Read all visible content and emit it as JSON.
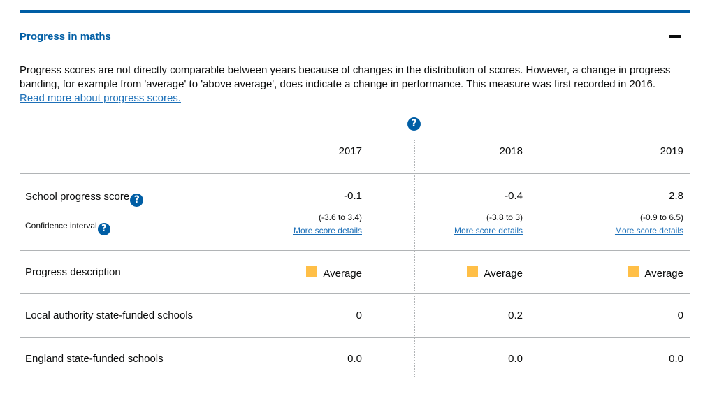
{
  "section": {
    "title": "Progress in maths",
    "collapse_icon": "minus-icon"
  },
  "intro": {
    "text": "Progress scores are not directly comparable between years because of changes in the distribution of scores. However, a change in progress banding, for example from 'average' to 'above average', does indicate a change in performance. This measure was first recorded in 2016.",
    "link_text": "Read more about progress scores."
  },
  "help_icon_glyph": "?",
  "years": [
    "2017",
    "2018",
    "2019"
  ],
  "rows": {
    "school_progress": {
      "label": "School progress score",
      "ci_label": "Confidence interval",
      "values": [
        "-0.1",
        "-0.4",
        "2.8"
      ],
      "confidence_intervals": [
        "(-3.6 to 3.4)",
        "(-3.8 to 3)",
        "(-0.9 to 6.5)"
      ],
      "more_link": "More score details"
    },
    "progress_description": {
      "label": "Progress description",
      "values": [
        "Average",
        "Average",
        "Average"
      ],
      "band_color": "#ffbf47"
    },
    "local_authority": {
      "label": "Local authority state-funded schools",
      "values": [
        "0",
        "0.2",
        "0"
      ]
    },
    "england": {
      "label": "England state-funded schools",
      "values": [
        "0.0",
        "0.0",
        "0.0"
      ]
    }
  },
  "colors": {
    "accent": "#005ea5",
    "link": "#1d70b8",
    "band_average": "#ffbf47"
  }
}
